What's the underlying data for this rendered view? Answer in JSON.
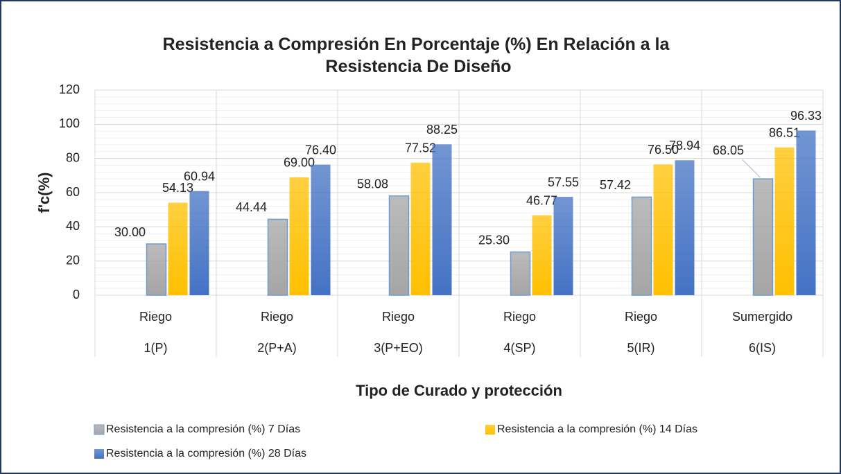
{
  "chart_data": {
    "type": "bar",
    "title": "Resistencia a Compresión En Porcentaje (%) En Relación a la Resistencia De Diseño",
    "x_label": "Tipo de Curado y protección",
    "y_label": "f'c(%)",
    "category_groups": [
      "Riego",
      "Riego",
      "Riego",
      "Riego",
      "Riego",
      "Sumergido"
    ],
    "categories": [
      "1(P)",
      "2(P+A)",
      "3(P+EO)",
      "4(SP)",
      "5(IR)",
      "6(IS)"
    ],
    "series": [
      {
        "name": "Resistencia a la compresión (%) 7 Días",
        "color": "#a5a5a5",
        "values": [
          30,
          44.44,
          58.08,
          25.3,
          57.42,
          68.05
        ],
        "value_labels": [
          "30.00",
          "44.44",
          "58.08",
          "25.30",
          "57.42",
          "68.05"
        ]
      },
      {
        "name": "Resistencia a la compresión (%) 14 Días",
        "color": "#ffc000",
        "values": [
          54.13,
          69,
          77.52,
          46.77,
          76.5,
          86.51
        ],
        "value_labels": [
          "54.13",
          "69.00",
          "77.52",
          "46.77",
          "76.50",
          "86.51"
        ]
      },
      {
        "name": "Resistencia a la compresión (%) 28 Días",
        "color": "#4472c4",
        "values": [
          60.94,
          76.4,
          88.25,
          57.55,
          78.94,
          96.33
        ],
        "value_labels": [
          "60.94",
          "76.40",
          "88.25",
          "57.55",
          "78.94",
          "96.33"
        ]
      }
    ],
    "ylim": [
      0,
      120
    ],
    "yticks": [
      0,
      20,
      40,
      60,
      80,
      100,
      120
    ],
    "grid": true,
    "legend": "bottom"
  }
}
